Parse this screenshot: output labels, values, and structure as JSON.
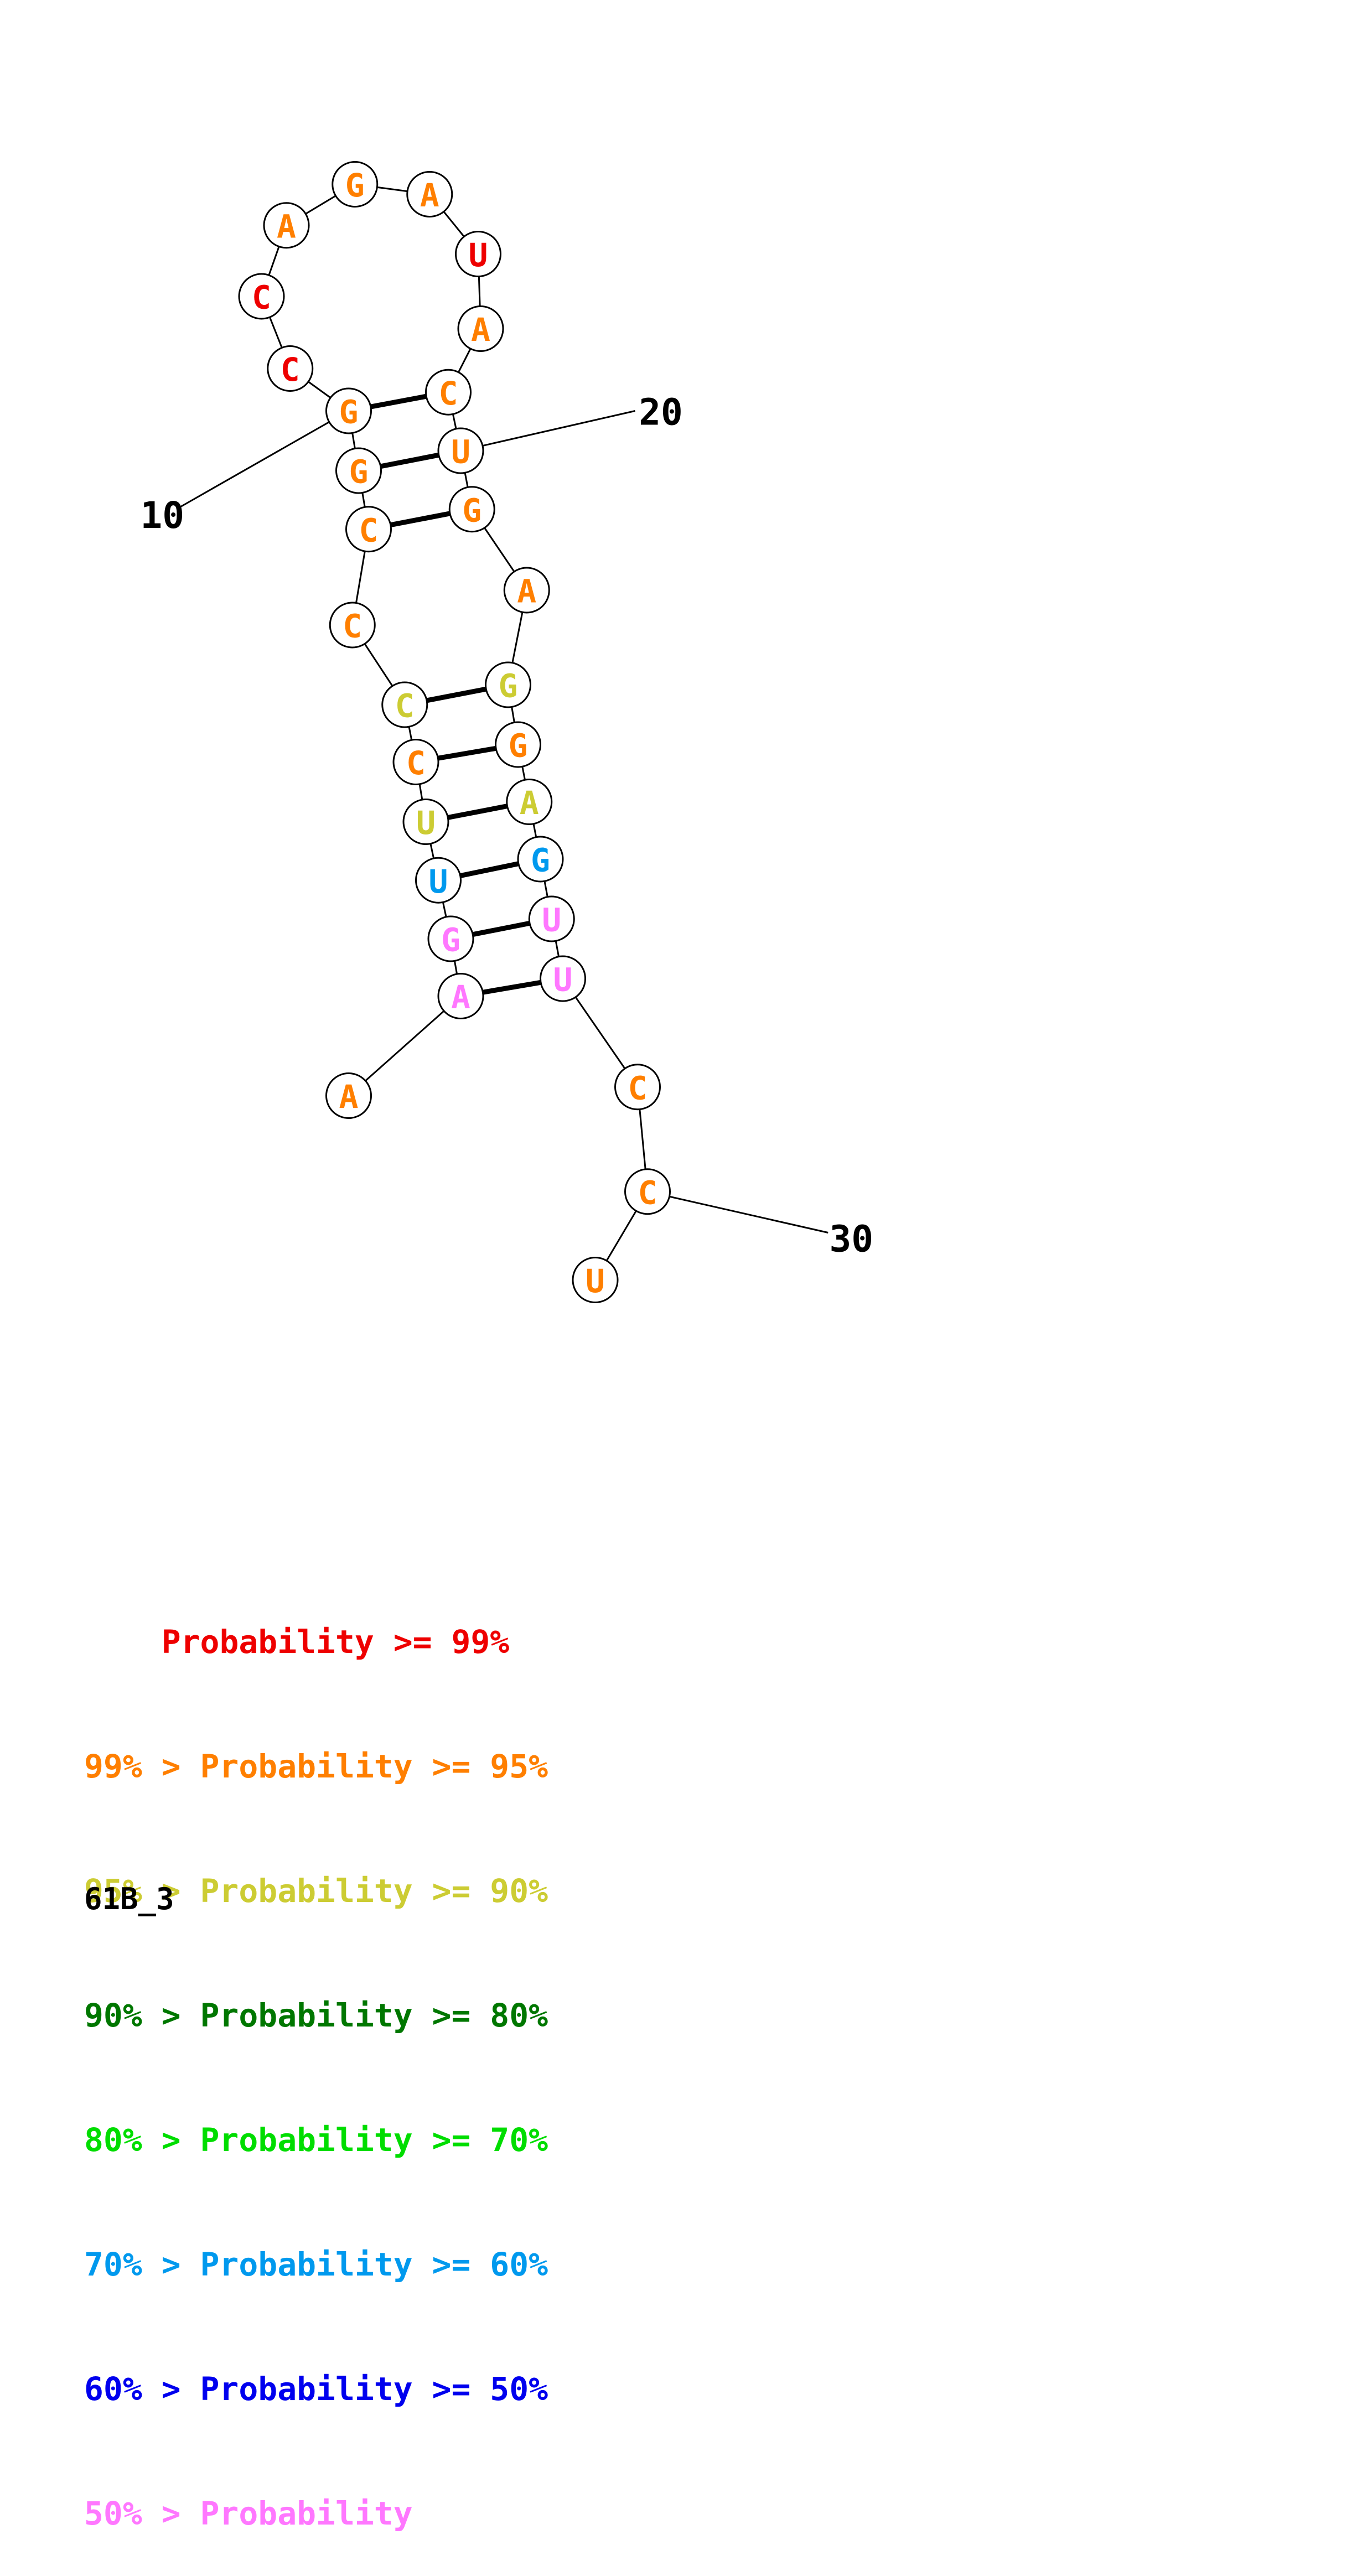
{
  "colors": {
    "p99": "#ee0000",
    "p95": "#ff7f00",
    "p90": "#cccc33",
    "p80": "#007700",
    "p70": "#00dd00",
    "p60": "#0099ee",
    "p50": "#0000ee",
    "p0": "#ff77ff"
  },
  "nucleotides": [
    {
      "base": "A",
      "cls": "p95"
    },
    {
      "base": "A",
      "cls": "p0"
    },
    {
      "base": "G",
      "cls": "p0"
    },
    {
      "base": "U",
      "cls": "p60"
    },
    {
      "base": "U",
      "cls": "p90"
    },
    {
      "base": "C",
      "cls": "p95"
    },
    {
      "base": "C",
      "cls": "p90"
    },
    {
      "base": "C",
      "cls": "p95"
    },
    {
      "base": "C",
      "cls": "p95"
    },
    {
      "base": "G",
      "cls": "p95"
    },
    {
      "base": "G",
      "cls": "p95"
    },
    {
      "base": "C",
      "cls": "p99"
    },
    {
      "base": "C",
      "cls": "p99"
    },
    {
      "base": "A",
      "cls": "p95"
    },
    {
      "base": "G",
      "cls": "p95"
    },
    {
      "base": "A",
      "cls": "p95"
    },
    {
      "base": "U",
      "cls": "p99"
    },
    {
      "base": "A",
      "cls": "p95"
    },
    {
      "base": "C",
      "cls": "p95"
    },
    {
      "base": "U",
      "cls": "p95"
    },
    {
      "base": "G",
      "cls": "p95"
    },
    {
      "base": "A",
      "cls": "p95"
    },
    {
      "base": "G",
      "cls": "p90"
    },
    {
      "base": "G",
      "cls": "p95"
    },
    {
      "base": "A",
      "cls": "p90"
    },
    {
      "base": "G",
      "cls": "p60"
    },
    {
      "base": "U",
      "cls": "p0"
    },
    {
      "base": "U",
      "cls": "p0"
    },
    {
      "base": "C",
      "cls": "p95"
    },
    {
      "base": "C",
      "cls": "p95"
    },
    {
      "base": "U",
      "cls": "p95"
    }
  ],
  "pairs": [
    [
      1,
      27
    ],
    [
      2,
      26
    ],
    [
      3,
      25
    ],
    [
      4,
      24
    ],
    [
      5,
      23
    ],
    [
      6,
      22
    ],
    [
      8,
      20
    ],
    [
      9,
      19
    ],
    [
      10,
      18
    ]
  ],
  "index_labels": [
    {
      "index": 10,
      "label": "10"
    },
    {
      "index": 19,
      "label": "20"
    },
    {
      "index": 29,
      "label": "30"
    }
  ],
  "legend": [
    {
      "prefix": "    ",
      "text": "Probability >= 99%",
      "cls": "p99"
    },
    {
      "prefix": "99% > ",
      "text": "Probability >= 95%",
      "cls": "p95"
    },
    {
      "prefix": "95% > ",
      "text": "Probability >= 90%",
      "cls": "p90"
    },
    {
      "prefix": "90% > ",
      "text": "Probability >= 80%",
      "cls": "p80"
    },
    {
      "prefix": "80% > ",
      "text": "Probability >= 70%",
      "cls": "p70"
    },
    {
      "prefix": "70% > ",
      "text": "Probability >= 60%",
      "cls": "p60"
    },
    {
      "prefix": "60% > ",
      "text": "Probability >= 50%",
      "cls": "p50"
    },
    {
      "prefix": "50% > ",
      "text": "Probability",
      "cls": "p0"
    }
  ],
  "structure_name": "61B_3"
}
